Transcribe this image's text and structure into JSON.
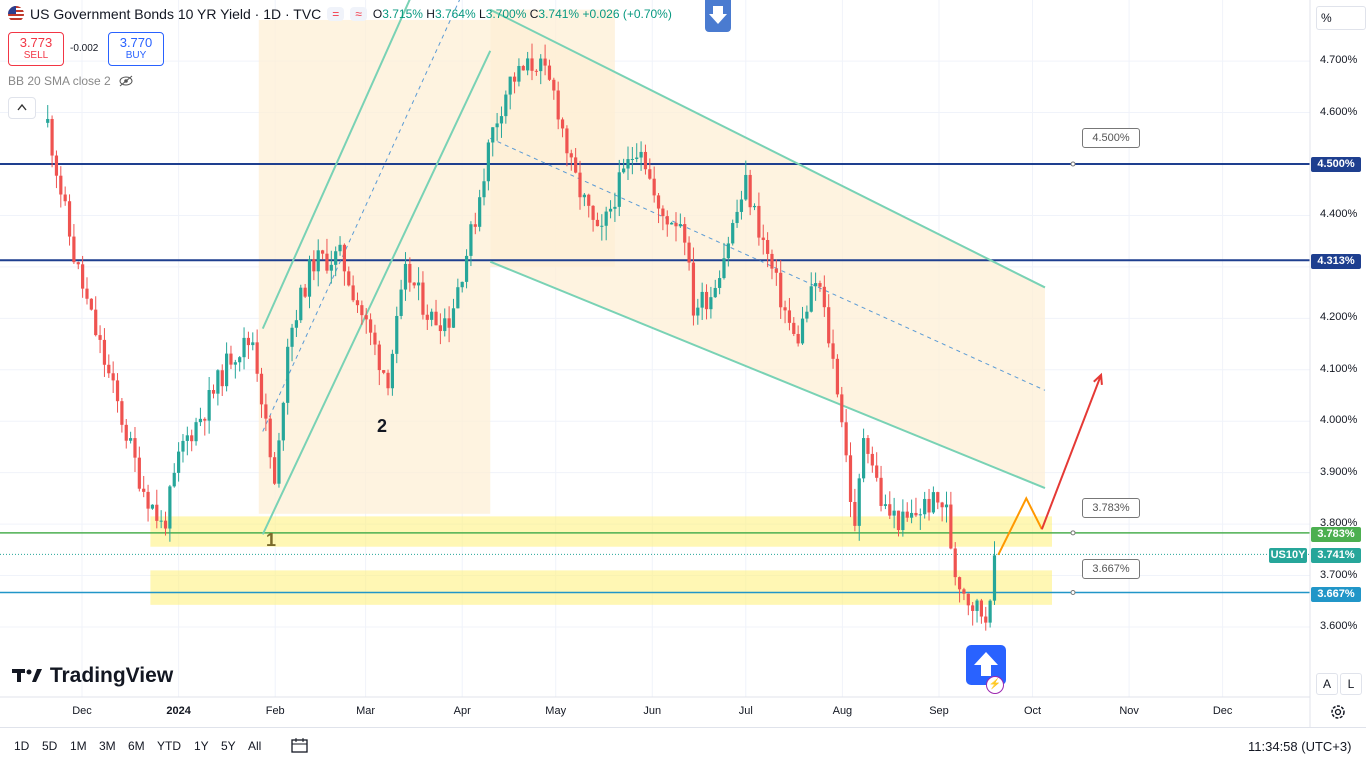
{
  "header": {
    "title": "US Government Bonds 10 YR Yield · 1D · TVC",
    "open_label": "O",
    "open": "3.715%",
    "high_label": "H",
    "high": "3.764%",
    "low_label": "L",
    "low": "3.700%",
    "close_label": "C",
    "close": "3.741%",
    "change": "+0.026 (+0.70%)",
    "pill_1": "=",
    "pill_2": "≈"
  },
  "trade": {
    "sell_price": "3.773",
    "sell_label": "SELL",
    "spread": "-0.002",
    "buy_price": "3.770",
    "buy_label": "BUY"
  },
  "indicator": {
    "label": "BB 20 SMA close 2"
  },
  "axis": {
    "unit": "%",
    "auto_label": "A",
    "log_label": "L"
  },
  "price_tags": {
    "level_450": "4.500%",
    "level_4313": "4.313%",
    "level_3783": "3.783%",
    "level_3667": "3.667%",
    "symbol": "US10Y",
    "last": "3.741%"
  },
  "callouts": {
    "c_450": "4.500%",
    "c_3783": "3.783%",
    "c_3667": "3.667%"
  },
  "markers": {
    "m1": "1",
    "m2": "2"
  },
  "branding": {
    "logo_text": "TradingView"
  },
  "timeframes": [
    "1D",
    "5D",
    "1M",
    "3M",
    "6M",
    "YTD",
    "1Y",
    "5Y",
    "All"
  ],
  "clock": "11:34:58 (UTC+3)",
  "colors": {
    "up": "#26a69a",
    "down": "#ef5350",
    "level_line": "#1e3f8f",
    "zone": "#fff176",
    "channel": "#79d2b5",
    "channel_fill": "#fdefd6",
    "projection_up": "#e53935",
    "projection_bounce": "#ff9800"
  },
  "chart_data": {
    "type": "candlestick",
    "title": "US Government Bonds 10 YR Yield · 1D · TVC",
    "y_ticks": [
      "4.700%",
      "4.600%",
      "4.500%",
      "4.400%",
      "4.300%",
      "4.200%",
      "4.100%",
      "4.000%",
      "3.900%",
      "3.800%",
      "3.700%",
      "3.600%"
    ],
    "x_ticks": [
      "Dec",
      "2024",
      "Feb",
      "Mar",
      "Apr",
      "May",
      "Jun",
      "Jul",
      "Aug",
      "Sep",
      "Oct",
      "Nov",
      "Dec"
    ],
    "ylim": [
      3.47,
      4.8
    ],
    "horizontal_levels": [
      4.5,
      4.313,
      3.783,
      3.667
    ],
    "last_price": 3.741,
    "close_path": [
      {
        "date": "2023-11-20",
        "y": 4.58
      },
      {
        "date": "2023-11-28",
        "y": 4.33
      },
      {
        "date": "2023-12-04",
        "y": 4.2
      },
      {
        "date": "2023-12-13",
        "y": 4.02
      },
      {
        "date": "2023-12-20",
        "y": 3.88
      },
      {
        "date": "2023-12-27",
        "y": 3.79
      },
      {
        "date": "2024-01-02",
        "y": 3.95
      },
      {
        "date": "2024-01-10",
        "y": 4.03
      },
      {
        "date": "2024-01-18",
        "y": 4.13
      },
      {
        "date": "2024-01-25",
        "y": 4.16
      },
      {
        "date": "2024-02-01",
        "y": 3.86
      },
      {
        "date": "2024-02-05",
        "y": 4.16
      },
      {
        "date": "2024-02-13",
        "y": 4.31
      },
      {
        "date": "2024-02-22",
        "y": 4.32
      },
      {
        "date": "2024-03-01",
        "y": 4.19
      },
      {
        "date": "2024-03-08",
        "y": 4.08
      },
      {
        "date": "2024-03-14",
        "y": 4.29
      },
      {
        "date": "2024-03-22",
        "y": 4.2
      },
      {
        "date": "2024-03-28",
        "y": 4.2
      },
      {
        "date": "2024-04-05",
        "y": 4.39
      },
      {
        "date": "2024-04-10",
        "y": 4.55
      },
      {
        "date": "2024-04-16",
        "y": 4.66
      },
      {
        "date": "2024-04-25",
        "y": 4.7
      },
      {
        "date": "2024-05-01",
        "y": 4.63
      },
      {
        "date": "2024-05-06",
        "y": 4.49
      },
      {
        "date": "2024-05-15",
        "y": 4.35
      },
      {
        "date": "2024-05-20",
        "y": 4.44
      },
      {
        "date": "2024-05-28",
        "y": 4.55
      },
      {
        "date": "2024-06-03",
        "y": 4.4
      },
      {
        "date": "2024-06-11",
        "y": 4.39
      },
      {
        "date": "2024-06-14",
        "y": 4.22
      },
      {
        "date": "2024-06-20",
        "y": 4.25
      },
      {
        "date": "2024-07-01",
        "y": 4.46
      },
      {
        "date": "2024-07-10",
        "y": 4.28
      },
      {
        "date": "2024-07-17",
        "y": 4.15
      },
      {
        "date": "2024-07-24",
        "y": 4.28
      },
      {
        "date": "2024-07-31",
        "y": 4.05
      },
      {
        "date": "2024-08-05",
        "y": 3.78
      },
      {
        "date": "2024-08-08",
        "y": 3.99
      },
      {
        "date": "2024-08-14",
        "y": 3.83
      },
      {
        "date": "2024-08-21",
        "y": 3.8
      },
      {
        "date": "2024-08-28",
        "y": 3.84
      },
      {
        "date": "2024-09-03",
        "y": 3.84
      },
      {
        "date": "2024-09-06",
        "y": 3.71
      },
      {
        "date": "2024-09-11",
        "y": 3.65
      },
      {
        "date": "2024-09-16",
        "y": 3.62
      },
      {
        "date": "2024-09-18",
        "y": 3.7
      },
      {
        "date": "2024-09-20",
        "y": 3.741
      }
    ],
    "zones": [
      {
        "from": 3.756,
        "to": 3.815,
        "start": "2023-12-13"
      },
      {
        "from": 3.643,
        "to": 3.71,
        "start": "2023-12-13"
      }
    ],
    "ascending_channel": {
      "start": "2024-01-28",
      "end": "2024-04-10",
      "bottom": [
        3.78,
        4.72
      ],
      "top": [
        4.18,
        5.17
      ],
      "mid": [
        3.98,
        4.95
      ]
    },
    "descending_channel": {
      "start": "2024-04-10",
      "end": "2024-10-05",
      "top": [
        4.8,
        4.26
      ],
      "bottom": [
        4.31,
        3.87
      ],
      "mid": [
        4.55,
        4.06
      ]
    },
    "projection": [
      {
        "date": "2024-09-20",
        "y": 3.74
      },
      {
        "date": "2024-09-29",
        "y": 3.85
      },
      {
        "date": "2024-10-04",
        "y": 3.79
      },
      {
        "date": "2024-10-23",
        "y": 4.09
      }
    ]
  }
}
